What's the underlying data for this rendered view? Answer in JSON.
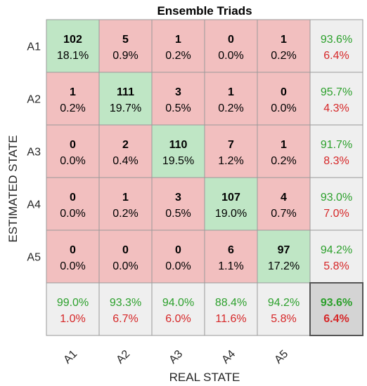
{
  "chart_data": {
    "type": "heatmap",
    "title": "Ensemble Triads",
    "xlabel": "REAL STATE",
    "ylabel": "ESTIMATED STATE",
    "x_categories": [
      "A1",
      "A2",
      "A3",
      "A4",
      "A5"
    ],
    "y_categories": [
      "A1",
      "A2",
      "A3",
      "A4",
      "A5"
    ],
    "counts": [
      [
        102,
        5,
        1,
        0,
        1
      ],
      [
        1,
        111,
        3,
        1,
        0
      ],
      [
        0,
        2,
        110,
        7,
        1
      ],
      [
        0,
        1,
        3,
        107,
        4
      ],
      [
        0,
        0,
        0,
        6,
        97
      ]
    ],
    "percents": [
      [
        "18.1%",
        "0.9%",
        "0.2%",
        "0.0%",
        "0.2%"
      ],
      [
        "0.2%",
        "19.7%",
        "0.5%",
        "0.2%",
        "0.0%"
      ],
      [
        "0.0%",
        "0.4%",
        "19.5%",
        "1.2%",
        "0.2%"
      ],
      [
        "0.0%",
        "0.2%",
        "0.5%",
        "19.0%",
        "0.7%"
      ],
      [
        "0.0%",
        "0.0%",
        "0.0%",
        "1.1%",
        "17.2%"
      ]
    ],
    "row_summary": [
      [
        "93.6%",
        "6.4%"
      ],
      [
        "95.7%",
        "4.3%"
      ],
      [
        "91.7%",
        "8.3%"
      ],
      [
        "93.0%",
        "7.0%"
      ],
      [
        "94.2%",
        "5.8%"
      ]
    ],
    "col_summary": [
      [
        "99.0%",
        "1.0%"
      ],
      [
        "93.3%",
        "6.7%"
      ],
      [
        "94.0%",
        "6.0%"
      ],
      [
        "88.4%",
        "11.6%"
      ],
      [
        "94.2%",
        "5.8%"
      ]
    ],
    "overall": [
      "93.6%",
      "6.4%"
    ],
    "colors": {
      "diagonal": "#bfe6c5",
      "off_diagonal": "#f2bfbf",
      "summary": "#efefef",
      "overall_cell": "#d4d4d4",
      "grid": "#9a9a9a",
      "correct_text": "#2ca02c",
      "error_text": "#d62728"
    }
  }
}
